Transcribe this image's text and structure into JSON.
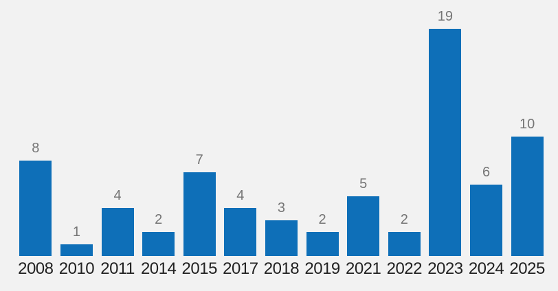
{
  "chart_data": {
    "type": "bar",
    "categories": [
      "2008",
      "2010",
      "2011",
      "2014",
      "2015",
      "2017",
      "2018",
      "2019",
      "2021",
      "2022",
      "2023",
      "2024",
      "2025"
    ],
    "values": [
      8,
      1,
      4,
      2,
      7,
      4,
      3,
      2,
      5,
      2,
      19,
      6,
      10
    ],
    "title": "",
    "xlabel": "",
    "ylabel": "",
    "ylim": [
      0,
      19
    ],
    "grid": "off",
    "legend": "none",
    "data_labels": "above-bars",
    "bar_color": "#0e6fb8",
    "value_label_color": "#757575",
    "axis_label_color": "#222222",
    "background_color": "#f2f2f2"
  }
}
